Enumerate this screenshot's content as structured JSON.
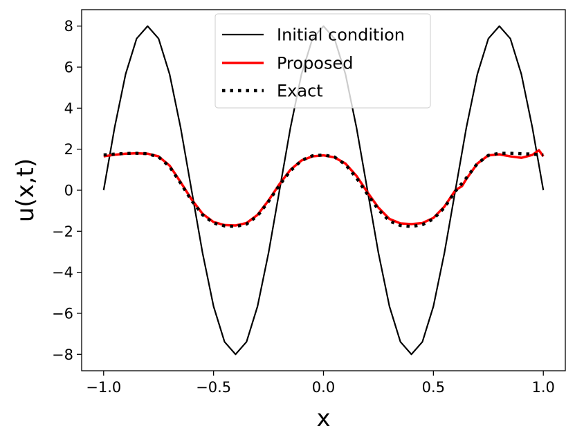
{
  "chart_data": {
    "type": "line",
    "title": "",
    "xlabel": "x",
    "ylabel": "u(x,t)",
    "xlim": [
      -1.1,
      1.1
    ],
    "ylim": [
      -8.8,
      8.8
    ],
    "xticks": [
      -1.0,
      -0.5,
      0.0,
      0.5,
      1.0
    ],
    "xtick_labels": [
      "−1.0",
      "−0.5",
      "0.0",
      "0.5",
      "1.0"
    ],
    "yticks": [
      -8,
      -6,
      -4,
      -2,
      0,
      2,
      4,
      6,
      8
    ],
    "ytick_labels": [
      "−8",
      "−6",
      "−4",
      "−2",
      "0",
      "2",
      "4",
      "6",
      "8"
    ],
    "grid": false,
    "legend_position": "top-center",
    "series": [
      {
        "name": "Initial condition",
        "color": "#000000",
        "style": "solid",
        "x": [
          -1.0,
          -0.95,
          -0.9,
          -0.85,
          -0.8,
          -0.75,
          -0.7,
          -0.65,
          -0.6,
          -0.55,
          -0.5,
          -0.45,
          -0.4,
          -0.35,
          -0.3,
          -0.25,
          -0.2,
          -0.15,
          -0.1,
          -0.05,
          0.0,
          0.05,
          0.1,
          0.15,
          0.2,
          0.25,
          0.3,
          0.35,
          0.4,
          0.45,
          0.5,
          0.55,
          0.6,
          0.65,
          0.7,
          0.75,
          0.8,
          0.85,
          0.9,
          0.95,
          1.0
        ],
        "y": [
          0.0,
          3.06,
          5.66,
          7.39,
          8.0,
          7.39,
          5.66,
          3.06,
          0.0,
          -3.06,
          -5.66,
          -7.39,
          -8.0,
          -7.39,
          -5.66,
          -3.06,
          0.0,
          3.06,
          5.66,
          7.39,
          8.0,
          7.39,
          5.66,
          3.06,
          0.0,
          -3.06,
          -5.66,
          -7.39,
          -8.0,
          -7.39,
          -5.66,
          -3.06,
          0.0,
          3.06,
          5.66,
          7.39,
          8.0,
          7.39,
          5.66,
          3.06,
          0.0
        ]
      },
      {
        "name": "Proposed",
        "color": "#ff0000",
        "style": "solid",
        "x": [
          -1.0,
          -0.95,
          -0.9,
          -0.85,
          -0.8,
          -0.75,
          -0.7,
          -0.65,
          -0.6,
          -0.55,
          -0.5,
          -0.45,
          -0.4,
          -0.35,
          -0.3,
          -0.25,
          -0.2,
          -0.15,
          -0.1,
          -0.05,
          0.0,
          0.05,
          0.1,
          0.15,
          0.2,
          0.25,
          0.3,
          0.35,
          0.4,
          0.45,
          0.5,
          0.55,
          0.6,
          0.63,
          0.65,
          0.7,
          0.75,
          0.8,
          0.85,
          0.9,
          0.95,
          0.98,
          1.0
        ],
        "y": [
          1.65,
          1.73,
          1.78,
          1.8,
          1.78,
          1.65,
          1.2,
          0.4,
          -0.45,
          -1.15,
          -1.55,
          -1.7,
          -1.72,
          -1.6,
          -1.2,
          -0.5,
          0.3,
          1.0,
          1.45,
          1.65,
          1.7,
          1.6,
          1.3,
          0.7,
          -0.1,
          -0.85,
          -1.4,
          -1.62,
          -1.65,
          -1.6,
          -1.35,
          -0.8,
          0.0,
          0.2,
          0.55,
          1.3,
          1.7,
          1.75,
          1.65,
          1.58,
          1.72,
          1.95,
          1.65
        ]
      },
      {
        "name": "Exact",
        "color": "#000000",
        "style": "dotted",
        "x": [
          -1.0,
          -0.95,
          -0.9,
          -0.85,
          -0.8,
          -0.75,
          -0.7,
          -0.65,
          -0.6,
          -0.55,
          -0.5,
          -0.45,
          -0.4,
          -0.35,
          -0.3,
          -0.25,
          -0.2,
          -0.15,
          -0.1,
          -0.05,
          0.0,
          0.05,
          0.1,
          0.15,
          0.2,
          0.25,
          0.3,
          0.35,
          0.4,
          0.45,
          0.5,
          0.55,
          0.6,
          0.65,
          0.7,
          0.75,
          0.8,
          0.85,
          0.9,
          0.95,
          1.0
        ],
        "y": [
          1.72,
          1.76,
          1.79,
          1.8,
          1.78,
          1.62,
          1.15,
          0.35,
          -0.5,
          -1.2,
          -1.6,
          -1.74,
          -1.77,
          -1.65,
          -1.25,
          -0.55,
          0.25,
          0.95,
          1.45,
          1.68,
          1.72,
          1.62,
          1.25,
          0.6,
          -0.2,
          -0.95,
          -1.5,
          -1.72,
          -1.77,
          -1.68,
          -1.4,
          -0.85,
          -0.05,
          0.6,
          1.3,
          1.7,
          1.8,
          1.8,
          1.78,
          1.76,
          1.72
        ]
      }
    ]
  }
}
